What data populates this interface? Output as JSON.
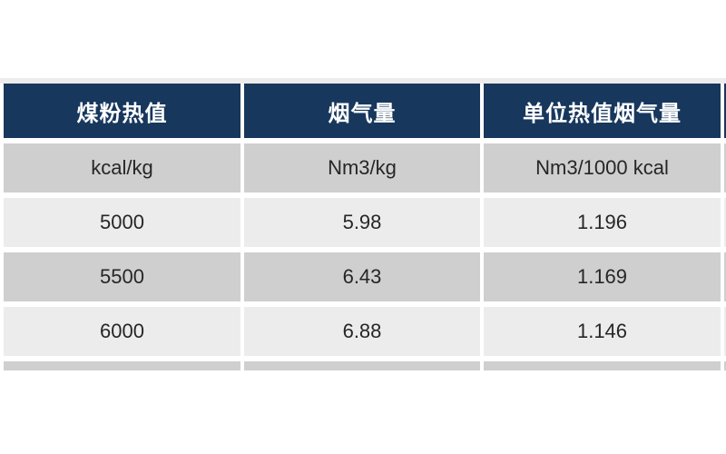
{
  "table": {
    "headers": [
      "煤粉热值",
      "烟气量",
      "单位热值烟气量"
    ],
    "units": [
      "kcal/kg",
      "Nm3/kg",
      "Nm3/1000 kcal"
    ],
    "rows": [
      [
        "5000",
        "5.98",
        "1.196"
      ],
      [
        "5500",
        "6.43",
        "1.169"
      ],
      [
        "6000",
        "6.88",
        "1.146"
      ]
    ]
  },
  "chart_data": {
    "type": "table",
    "title": "",
    "columns": [
      "煤粉热值",
      "烟气量",
      "单位热值烟气量"
    ],
    "column_units": [
      "kcal/kg",
      "Nm3/kg",
      "Nm3/1000 kcal"
    ],
    "rows": [
      [
        5000,
        5.98,
        1.196
      ],
      [
        5500,
        6.43,
        1.169
      ],
      [
        6000,
        6.88,
        1.146
      ]
    ],
    "notes": "fourth column and sixth row clipped at image edge"
  },
  "colors": {
    "header_bg": "#17375d",
    "header_text": "#ffffff",
    "row_gray": "#cfcfcf",
    "row_light": "#ececec",
    "body_text": "#262626",
    "page_bg": "#ffffff",
    "top_strip": "#ececec"
  }
}
